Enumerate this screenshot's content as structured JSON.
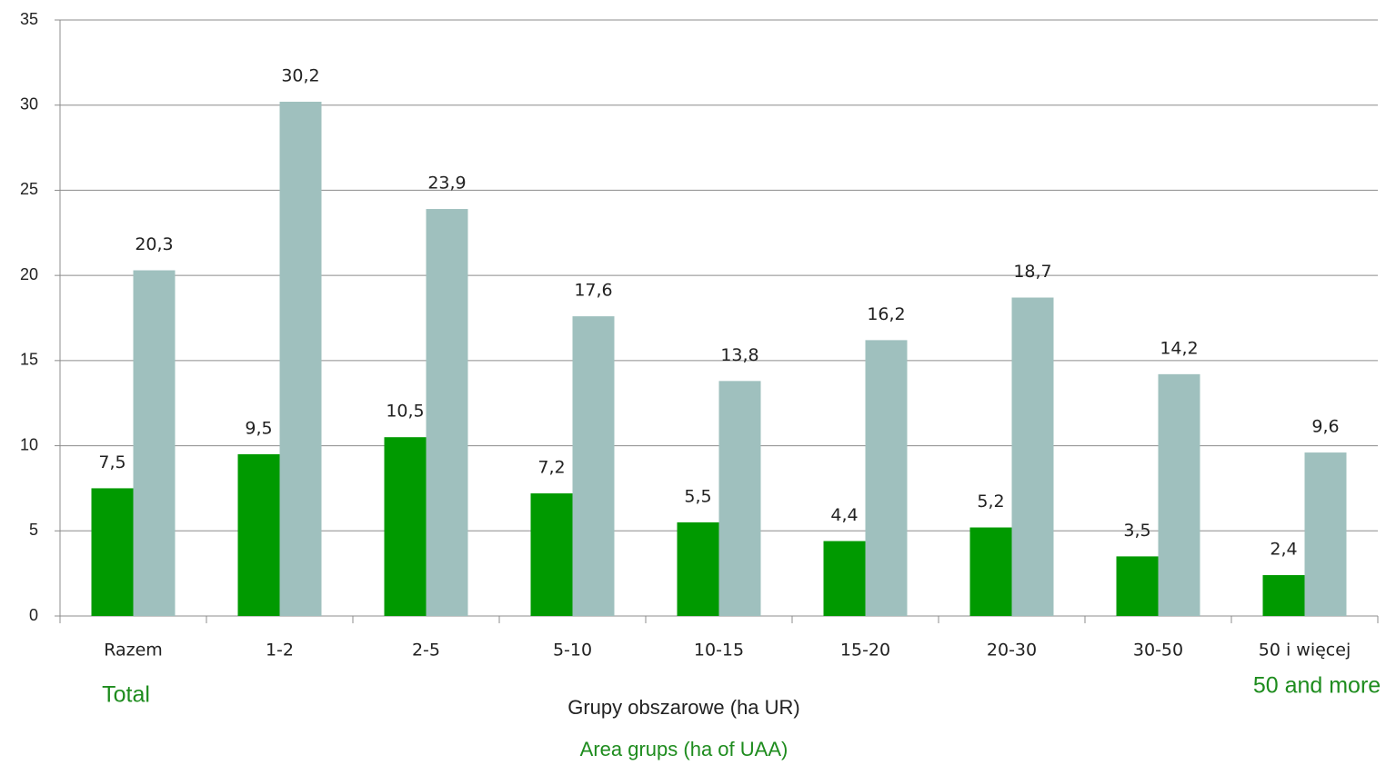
{
  "chart_data": {
    "type": "bar",
    "categories": [
      "Razem",
      "1-2",
      "2-5",
      "5-10",
      "10-15",
      "15-20",
      "20-30",
      "30-50",
      "50 i więcej"
    ],
    "series": [
      {
        "color": "#009a00",
        "values": [
          7.5,
          9.5,
          10.5,
          7.2,
          5.5,
          4.4,
          5.2,
          3.5,
          2.4
        ],
        "value_labels": [
          "7,5",
          "9,5",
          "10,5",
          "7,2",
          "5,5",
          "4,4",
          "5,2",
          "3,5",
          "2,4"
        ]
      },
      {
        "color": "#9fc0be",
        "values": [
          20.3,
          30.2,
          23.9,
          17.6,
          13.8,
          16.2,
          18.7,
          14.2,
          9.6
        ],
        "value_labels": [
          "20,3",
          "30,2",
          "23,9",
          "17,6",
          "13,8",
          "16,2",
          "18,7",
          "14,2",
          "9,6"
        ]
      }
    ],
    "ylim": [
      0,
      35
    ],
    "yticks": [
      0,
      5,
      10,
      15,
      20,
      25,
      30,
      35
    ],
    "grid": true,
    "xlabel": "Grupy obszarowe (ha UR)",
    "annotations": [
      "Total",
      "Area grups (ha of UAA)",
      "50 and more"
    ],
    "annotation_color": "#1e8c1e"
  }
}
